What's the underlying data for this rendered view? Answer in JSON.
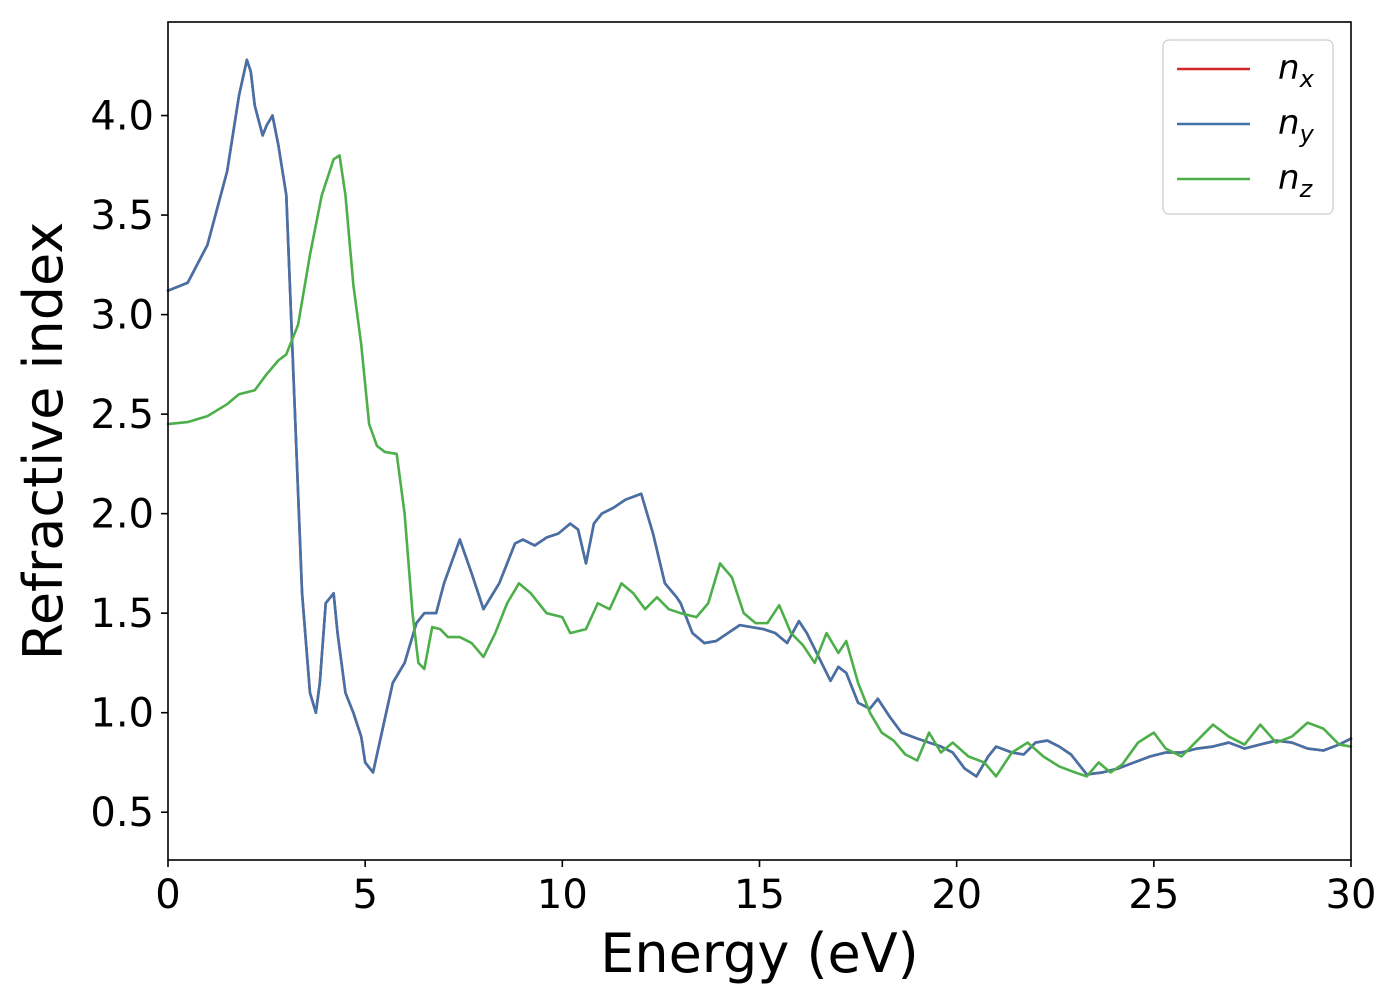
{
  "chart_data": {
    "type": "line",
    "title": "",
    "xlabel": "Energy (eV)",
    "ylabel": "Refractive index",
    "xlim": [
      0,
      30
    ],
    "ylim": [
      0.26,
      4.47
    ],
    "xticks": [
      "0",
      "5",
      "10",
      "15",
      "20",
      "25",
      "30"
    ],
    "yticks": [
      "0.5",
      "1.0",
      "1.5",
      "2.0",
      "2.5",
      "3.0",
      "3.5",
      "4.0"
    ],
    "grid": false,
    "legend_position": "top-right",
    "series": [
      {
        "name": "n",
        "subscript": "x",
        "color": "#d62728",
        "x": [
          0,
          0.5,
          1.0,
          1.5,
          1.8,
          2.0,
          2.1,
          2.2,
          2.4,
          2.5,
          2.65,
          2.8,
          3.0,
          3.2,
          3.4,
          3.6,
          3.75,
          3.85,
          4.0,
          4.2,
          4.3,
          4.5,
          4.7,
          4.9,
          5.0,
          5.2,
          5.4,
          5.7,
          6.0,
          6.3,
          6.5,
          6.8,
          7.0,
          7.4,
          7.7,
          8.0,
          8.4,
          8.8,
          9.0,
          9.3,
          9.6,
          9.9,
          10.2,
          10.4,
          10.6,
          10.8,
          11.0,
          11.3,
          11.6,
          12.0,
          12.3,
          12.6,
          12.9,
          13.0,
          13.3,
          13.6,
          13.9,
          14.2,
          14.5,
          14.8,
          15.1,
          15.4,
          15.7,
          16.0,
          16.2,
          16.5,
          16.8,
          17.0,
          17.2,
          17.5,
          17.8,
          18.0,
          18.3,
          18.6,
          19.0,
          19.3,
          19.6,
          19.9,
          20.2,
          20.5,
          20.8,
          21.0,
          21.4,
          21.7,
          22.0,
          22.3,
          22.6,
          22.9,
          23.3,
          23.7,
          24.1,
          24.5,
          24.9,
          25.3,
          25.7,
          26.1,
          26.5,
          26.9,
          27.3,
          27.7,
          28.1,
          28.5,
          28.9,
          29.3,
          29.7,
          30.0
        ],
        "y": [
          3.12,
          3.16,
          3.35,
          3.72,
          4.1,
          4.28,
          4.22,
          4.05,
          3.9,
          3.95,
          4.0,
          3.85,
          3.6,
          2.6,
          1.6,
          1.1,
          1.0,
          1.15,
          1.55,
          1.6,
          1.4,
          1.1,
          1.0,
          0.88,
          0.75,
          0.7,
          0.88,
          1.15,
          1.25,
          1.45,
          1.5,
          1.5,
          1.65,
          1.87,
          1.7,
          1.52,
          1.65,
          1.85,
          1.87,
          1.84,
          1.88,
          1.9,
          1.95,
          1.92,
          1.75,
          1.95,
          2.0,
          2.03,
          2.07,
          2.1,
          1.9,
          1.65,
          1.58,
          1.55,
          1.4,
          1.35,
          1.36,
          1.4,
          1.44,
          1.43,
          1.42,
          1.4,
          1.35,
          1.46,
          1.4,
          1.28,
          1.16,
          1.23,
          1.2,
          1.05,
          1.02,
          1.07,
          0.98,
          0.9,
          0.87,
          0.85,
          0.83,
          0.8,
          0.72,
          0.68,
          0.78,
          0.83,
          0.8,
          0.79,
          0.85,
          0.86,
          0.83,
          0.79,
          0.69,
          0.7,
          0.72,
          0.75,
          0.78,
          0.8,
          0.8,
          0.82,
          0.83,
          0.85,
          0.82,
          0.84,
          0.86,
          0.85,
          0.82,
          0.81,
          0.84,
          0.87
        ]
      },
      {
        "name": "n",
        "subscript": "y",
        "color": "#4472a8",
        "x": [
          0,
          0.5,
          1.0,
          1.5,
          1.8,
          2.0,
          2.1,
          2.2,
          2.4,
          2.5,
          2.65,
          2.8,
          3.0,
          3.2,
          3.4,
          3.6,
          3.75,
          3.85,
          4.0,
          4.2,
          4.3,
          4.5,
          4.7,
          4.9,
          5.0,
          5.2,
          5.4,
          5.7,
          6.0,
          6.3,
          6.5,
          6.8,
          7.0,
          7.4,
          7.7,
          8.0,
          8.4,
          8.8,
          9.0,
          9.3,
          9.6,
          9.9,
          10.2,
          10.4,
          10.6,
          10.8,
          11.0,
          11.3,
          11.6,
          12.0,
          12.3,
          12.6,
          12.9,
          13.0,
          13.3,
          13.6,
          13.9,
          14.2,
          14.5,
          14.8,
          15.1,
          15.4,
          15.7,
          16.0,
          16.2,
          16.5,
          16.8,
          17.0,
          17.2,
          17.5,
          17.8,
          18.0,
          18.3,
          18.6,
          19.0,
          19.3,
          19.6,
          19.9,
          20.2,
          20.5,
          20.8,
          21.0,
          21.4,
          21.7,
          22.0,
          22.3,
          22.6,
          22.9,
          23.3,
          23.7,
          24.1,
          24.5,
          24.9,
          25.3,
          25.7,
          26.1,
          26.5,
          26.9,
          27.3,
          27.7,
          28.1,
          28.5,
          28.9,
          29.3,
          29.7,
          30.0
        ],
        "y": [
          3.12,
          3.16,
          3.35,
          3.72,
          4.1,
          4.28,
          4.22,
          4.05,
          3.9,
          3.95,
          4.0,
          3.85,
          3.6,
          2.6,
          1.6,
          1.1,
          1.0,
          1.15,
          1.55,
          1.6,
          1.4,
          1.1,
          1.0,
          0.88,
          0.75,
          0.7,
          0.88,
          1.15,
          1.25,
          1.45,
          1.5,
          1.5,
          1.65,
          1.87,
          1.7,
          1.52,
          1.65,
          1.85,
          1.87,
          1.84,
          1.88,
          1.9,
          1.95,
          1.92,
          1.75,
          1.95,
          2.0,
          2.03,
          2.07,
          2.1,
          1.9,
          1.65,
          1.58,
          1.55,
          1.4,
          1.35,
          1.36,
          1.4,
          1.44,
          1.43,
          1.42,
          1.4,
          1.35,
          1.46,
          1.4,
          1.28,
          1.16,
          1.23,
          1.2,
          1.05,
          1.02,
          1.07,
          0.98,
          0.9,
          0.87,
          0.85,
          0.83,
          0.8,
          0.72,
          0.68,
          0.78,
          0.83,
          0.8,
          0.79,
          0.85,
          0.86,
          0.83,
          0.79,
          0.69,
          0.7,
          0.72,
          0.75,
          0.78,
          0.8,
          0.8,
          0.82,
          0.83,
          0.85,
          0.82,
          0.84,
          0.86,
          0.85,
          0.82,
          0.81,
          0.84,
          0.87
        ]
      },
      {
        "name": "n",
        "subscript": "z",
        "color": "#4daf4a",
        "x": [
          0,
          0.5,
          1.0,
          1.5,
          1.8,
          2.0,
          2.2,
          2.5,
          2.8,
          3.0,
          3.3,
          3.6,
          3.9,
          4.2,
          4.35,
          4.5,
          4.7,
          4.9,
          5.1,
          5.3,
          5.5,
          5.8,
          6.0,
          6.2,
          6.35,
          6.5,
          6.7,
          6.9,
          7.1,
          7.4,
          7.7,
          8.0,
          8.3,
          8.6,
          8.9,
          9.2,
          9.6,
          10.0,
          10.2,
          10.6,
          10.9,
          11.2,
          11.5,
          11.8,
          12.1,
          12.4,
          12.7,
          13.0,
          13.4,
          13.7,
          14.0,
          14.3,
          14.6,
          14.9,
          15.2,
          15.5,
          15.8,
          16.1,
          16.4,
          16.7,
          17.0,
          17.2,
          17.5,
          17.8,
          18.1,
          18.4,
          18.7,
          19.0,
          19.3,
          19.6,
          19.9,
          20.3,
          20.7,
          21.0,
          21.4,
          21.8,
          22.2,
          22.6,
          23.0,
          23.3,
          23.6,
          23.9,
          24.2,
          24.6,
          25.0,
          25.3,
          25.7,
          26.1,
          26.5,
          26.9,
          27.3,
          27.7,
          28.1,
          28.5,
          28.9,
          29.3,
          29.7,
          30.0
        ],
        "y": [
          2.45,
          2.46,
          2.49,
          2.55,
          2.6,
          2.61,
          2.62,
          2.7,
          2.77,
          2.8,
          2.95,
          3.3,
          3.6,
          3.78,
          3.8,
          3.6,
          3.15,
          2.85,
          2.45,
          2.34,
          2.31,
          2.3,
          2.0,
          1.5,
          1.25,
          1.22,
          1.43,
          1.42,
          1.38,
          1.38,
          1.35,
          1.28,
          1.4,
          1.55,
          1.65,
          1.6,
          1.5,
          1.48,
          1.4,
          1.42,
          1.55,
          1.52,
          1.65,
          1.6,
          1.52,
          1.58,
          1.52,
          1.5,
          1.48,
          1.55,
          1.75,
          1.68,
          1.5,
          1.45,
          1.45,
          1.54,
          1.4,
          1.34,
          1.25,
          1.4,
          1.3,
          1.36,
          1.15,
          1.0,
          0.9,
          0.86,
          0.79,
          0.76,
          0.9,
          0.8,
          0.85,
          0.78,
          0.75,
          0.68,
          0.8,
          0.85,
          0.78,
          0.73,
          0.7,
          0.68,
          0.75,
          0.7,
          0.74,
          0.85,
          0.9,
          0.82,
          0.78,
          0.86,
          0.94,
          0.88,
          0.84,
          0.94,
          0.85,
          0.88,
          0.95,
          0.92,
          0.84,
          0.83
        ]
      }
    ]
  }
}
